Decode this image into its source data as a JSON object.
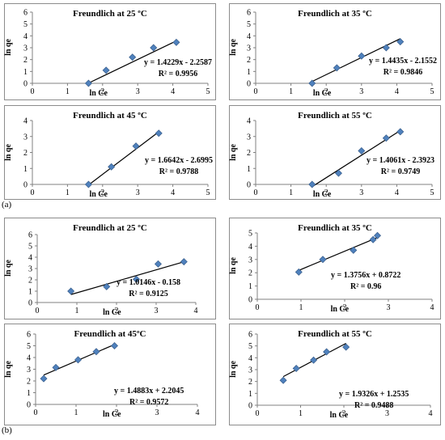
{
  "section_labels": {
    "a": "(a)",
    "b": "(b)"
  },
  "chart_data": [
    {
      "type": "scatter",
      "group": "a",
      "title": "Freundlich at 25 ºC",
      "xlabel": "ln Ce",
      "ylabel": "ln qe",
      "xlim": [
        0,
        5
      ],
      "ylim": [
        0,
        6
      ],
      "x": [
        1.6,
        2.1,
        2.85,
        3.45,
        4.1
      ],
      "y": [
        0.0,
        1.1,
        2.2,
        3.0,
        3.45
      ],
      "equation": "y = 1.4229x - 2.2587",
      "r2": "R² = 0.9956",
      "fit": {
        "m": 1.4229,
        "b": -2.2587
      }
    },
    {
      "type": "scatter",
      "group": "a",
      "title": "Freundlich at 35 ºC",
      "xlabel": "ln Ce",
      "ylabel": "ln qe",
      "xlim": [
        0,
        5
      ],
      "ylim": [
        0,
        6
      ],
      "x": [
        1.6,
        2.3,
        3.0,
        3.7,
        4.1
      ],
      "y": [
        0.0,
        1.3,
        2.3,
        3.0,
        3.5
      ],
      "equation": "y = 1.4435x - 2.1552",
      "r2": "R² = 0.9846",
      "fit": {
        "m": 1.4435,
        "b": -2.1552
      }
    },
    {
      "type": "scatter",
      "group": "a",
      "title": "Freundlich at 45 ºC",
      "xlabel": "ln Ce",
      "ylabel": "ln qe",
      "xlim": [
        0,
        5
      ],
      "ylim": [
        0,
        4
      ],
      "x": [
        1.6,
        2.25,
        2.95,
        3.6
      ],
      "y": [
        0.0,
        1.1,
        2.4,
        3.2
      ],
      "equation": "y = 1.6642x - 2.6995",
      "r2": "R² = 0.9788",
      "fit": {
        "m": 1.6642,
        "b": -2.6995
      }
    },
    {
      "type": "scatter",
      "group": "a",
      "title": "Freundlich at 55 ºC",
      "xlabel": "ln Ce",
      "ylabel": "ln qe",
      "xlim": [
        0,
        5
      ],
      "ylim": [
        0,
        4
      ],
      "x": [
        1.6,
        2.35,
        3.0,
        3.7,
        4.1
      ],
      "y": [
        0.0,
        0.7,
        2.1,
        2.9,
        3.3
      ],
      "equation": "y = 1.4061x - 2.3923",
      "r2": "R² = 0.9749",
      "fit": {
        "m": 1.4061,
        "b": -2.3923
      }
    },
    {
      "type": "scatter",
      "group": "b",
      "title": "Freundlich at 25 ºC",
      "xlabel": "ln Ce",
      "ylabel": "ln qe",
      "xlim": [
        0,
        4
      ],
      "ylim": [
        0,
        6
      ],
      "x": [
        0.85,
        1.75,
        2.5,
        3.05,
        3.7
      ],
      "y": [
        1.0,
        1.4,
        2.05,
        3.4,
        3.6
      ],
      "equation": "y = 1.0146x - 0.158",
      "r2": "R² = 0.9125",
      "fit": {
        "m": 1.0146,
        "b": -0.158
      }
    },
    {
      "type": "scatter",
      "group": "b",
      "title": "Freundlich at 35 ºC",
      "xlabel": "ln Ce",
      "ylabel": "ln qe",
      "xlim": [
        0,
        4
      ],
      "ylim": [
        0,
        5
      ],
      "x": [
        0.95,
        1.5,
        2.2,
        2.65,
        2.75
      ],
      "y": [
        2.05,
        3.0,
        3.7,
        4.5,
        4.8
      ],
      "equation": "y = 1.3756x + 0.8722",
      "r2": "R² = 0.96",
      "fit": {
        "m": 1.3756,
        "b": 0.8722
      }
    },
    {
      "type": "scatter",
      "group": "b",
      "title": "Freundlich at 45ºC",
      "xlabel": "ln Ce",
      "ylabel": "ln qe",
      "xlim": [
        0,
        4
      ],
      "ylim": [
        0,
        6
      ],
      "x": [
        0.2,
        0.5,
        1.05,
        1.5,
        1.95
      ],
      "y": [
        2.2,
        3.15,
        3.8,
        4.5,
        5.0
      ],
      "equation": "y = 1.4883x + 2.2045",
      "r2": "R² = 0.9572",
      "fit": {
        "m": 1.4883,
        "b": 2.2045
      }
    },
    {
      "type": "scatter",
      "group": "b",
      "title": "Freundlich at 55 ºC",
      "xlabel": "ln Ce",
      "ylabel": "ln qe",
      "xlim": [
        0,
        4
      ],
      "ylim": [
        0,
        6
      ],
      "x": [
        0.6,
        0.9,
        1.3,
        1.6,
        2.05
      ],
      "y": [
        2.1,
        3.1,
        3.8,
        4.5,
        4.9
      ],
      "equation": "y = 1.9326x + 1.2535",
      "r2": "R² = 0.9488",
      "fit": {
        "m": 1.9326,
        "b": 1.2535
      }
    }
  ]
}
